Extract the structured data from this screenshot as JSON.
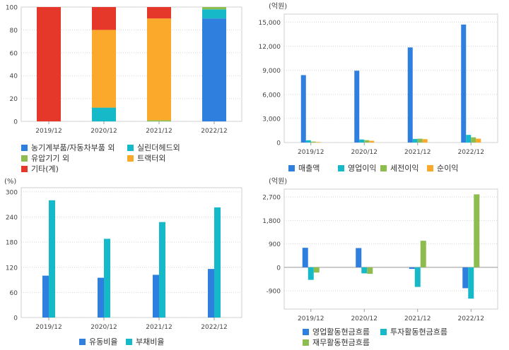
{
  "chart_data": [
    {
      "type": "bar",
      "stacked": true,
      "title": "",
      "unit": "",
      "categories": [
        "2019/12",
        "2020/12",
        "2021/12",
        "2022/12"
      ],
      "yticks": [
        0,
        20,
        40,
        60,
        80,
        100
      ],
      "ylim": [
        0,
        100
      ],
      "series": [
        {
          "name": "농기계부품/자동차부품 외",
          "color": "#2f7fdf",
          "values": [
            0,
            0,
            0,
            90
          ]
        },
        {
          "name": "실린더헤드외",
          "color": "#16b9c8",
          "values": [
            0,
            12,
            0,
            8
          ]
        },
        {
          "name": "유압기기 외",
          "color": "#8ebd4f",
          "values": [
            0,
            0,
            1,
            2
          ]
        },
        {
          "name": "트랙터외",
          "color": "#fba92a",
          "values": [
            0,
            68,
            89,
            0
          ]
        },
        {
          "name": "기타(계)",
          "color": "#e6382a",
          "values": [
            100,
            20,
            10,
            0
          ]
        }
      ]
    },
    {
      "type": "bar",
      "title": "",
      "unit": "(억원)",
      "categories": [
        "2019/12",
        "2020/12",
        "2021/12",
        "2022/12"
      ],
      "yticks": [
        0,
        3000,
        6000,
        9000,
        12000,
        15000
      ],
      "ytick_labels": [
        "0",
        "3,000",
        "6,000",
        "9,000",
        "12,000",
        "15,000"
      ],
      "ylim": [
        0,
        16000
      ],
      "series": [
        {
          "name": "매출액",
          "color": "#2f7fdf",
          "values": [
            8400,
            8950,
            11850,
            14700
          ]
        },
        {
          "name": "영업이익",
          "color": "#16b9c8",
          "values": [
            280,
            380,
            450,
            950
          ]
        },
        {
          "name": "세전이익",
          "color": "#8ebd4f",
          "values": [
            120,
            300,
            480,
            650
          ]
        },
        {
          "name": "순이익",
          "color": "#fba92a",
          "values": [
            60,
            220,
            420,
            480
          ]
        }
      ]
    },
    {
      "type": "bar",
      "title": "",
      "unit": "(%)",
      "categories": [
        "2019/12",
        "2020/12",
        "2021/12",
        "2022/12"
      ],
      "yticks": [
        0,
        60,
        120,
        180,
        240,
        300
      ],
      "ylim": [
        0,
        310
      ],
      "series": [
        {
          "name": "유동비율",
          "color": "#2f7fdf",
          "values": [
            100,
            95,
            102,
            116
          ]
        },
        {
          "name": "부채비율",
          "color": "#16b9c8",
          "values": [
            280,
            188,
            228,
            263
          ]
        }
      ]
    },
    {
      "type": "bar",
      "title": "",
      "unit": "(억원)",
      "categories": [
        "2019/12",
        "2020/12",
        "2021/12",
        "2022/12"
      ],
      "yticks": [
        -900,
        0,
        900,
        1800,
        2700
      ],
      "ytick_labels": [
        "-900",
        "0",
        "900",
        "1,800",
        "2,700"
      ],
      "ylim": [
        -1600,
        3000
      ],
      "series": [
        {
          "name": "영업활동현금흐름",
          "color": "#2f7fdf",
          "values": [
            750,
            740,
            -60,
            -800
          ]
        },
        {
          "name": "투자활동현금흐름",
          "color": "#16b9c8",
          "values": [
            -480,
            -230,
            -750,
            -1200
          ]
        },
        {
          "name": "재무활동현금흐름",
          "color": "#8ebd4f",
          "values": [
            -200,
            -250,
            1020,
            2800
          ]
        }
      ]
    }
  ]
}
